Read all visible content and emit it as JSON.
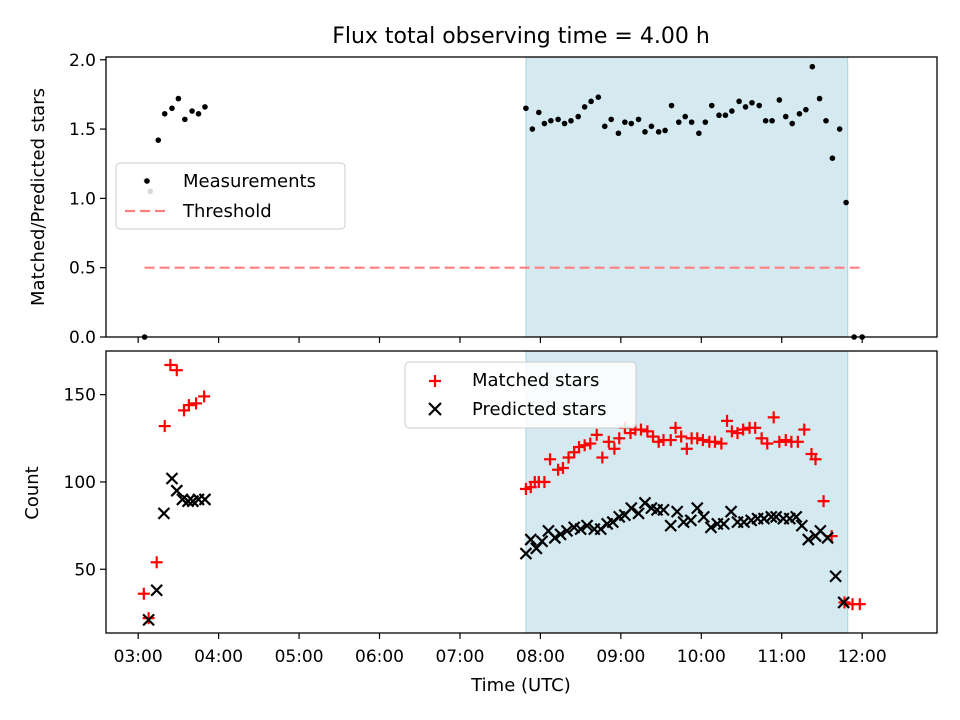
{
  "figure": {
    "title": "Flux total observing time = 4.00 h"
  },
  "chart_data": [
    {
      "type": "scatter",
      "ylabel": "Matched/Predicted stars",
      "xlabel": "",
      "x_axis": "time UTC (hours)",
      "xlim": [
        2.6,
        12.93
      ],
      "ylim": [
        0.0,
        2.02
      ],
      "yticks": [
        0.0,
        0.5,
        1.0,
        1.5,
        2.0
      ],
      "ytick_labels": [
        "0.0",
        "0.5",
        "1.0",
        "1.5",
        "2.0"
      ],
      "legend_position": "center-left",
      "legend": [
        "Measurements",
        "Threshold"
      ],
      "shaded_interval": {
        "x0": 7.82,
        "x1": 11.82,
        "color": "#d4e9f0"
      },
      "threshold": {
        "name": "Threshold",
        "y": 0.5,
        "x0": 3.08,
        "x1": 12.0,
        "color": "#ff7f7f"
      },
      "series": [
        {
          "name": "Measurements",
          "marker": "dot",
          "color": "#000000",
          "points": [
            [
              3.08,
              0.0
            ],
            [
              3.1,
              1.13
            ],
            [
              3.15,
              1.05
            ],
            [
              3.25,
              1.42
            ],
            [
              3.33,
              1.61
            ],
            [
              3.42,
              1.65
            ],
            [
              3.5,
              1.72
            ],
            [
              3.58,
              1.57
            ],
            [
              3.67,
              1.63
            ],
            [
              3.75,
              1.61
            ],
            [
              3.83,
              1.66
            ],
            [
              7.82,
              1.65
            ],
            [
              7.9,
              1.5
            ],
            [
              7.98,
              1.62
            ],
            [
              8.05,
              1.54
            ],
            [
              8.13,
              1.56
            ],
            [
              8.22,
              1.57
            ],
            [
              8.3,
              1.54
            ],
            [
              8.38,
              1.56
            ],
            [
              8.47,
              1.59
            ],
            [
              8.55,
              1.66
            ],
            [
              8.63,
              1.7
            ],
            [
              8.72,
              1.73
            ],
            [
              8.8,
              1.52
            ],
            [
              8.88,
              1.57
            ],
            [
              8.97,
              1.47
            ],
            [
              9.05,
              1.55
            ],
            [
              9.13,
              1.54
            ],
            [
              9.22,
              1.57
            ],
            [
              9.3,
              1.48
            ],
            [
              9.38,
              1.52
            ],
            [
              9.47,
              1.48
            ],
            [
              9.55,
              1.49
            ],
            [
              9.63,
              1.67
            ],
            [
              9.72,
              1.55
            ],
            [
              9.8,
              1.59
            ],
            [
              9.88,
              1.55
            ],
            [
              9.97,
              1.47
            ],
            [
              10.05,
              1.55
            ],
            [
              10.13,
              1.67
            ],
            [
              10.22,
              1.6
            ],
            [
              10.3,
              1.6
            ],
            [
              10.38,
              1.63
            ],
            [
              10.47,
              1.7
            ],
            [
              10.55,
              1.66
            ],
            [
              10.63,
              1.69
            ],
            [
              10.72,
              1.67
            ],
            [
              10.8,
              1.56
            ],
            [
              10.88,
              1.56
            ],
            [
              10.97,
              1.71
            ],
            [
              11.05,
              1.59
            ],
            [
              11.13,
              1.54
            ],
            [
              11.22,
              1.61
            ],
            [
              11.3,
              1.64
            ],
            [
              11.38,
              1.95
            ],
            [
              11.47,
              1.72
            ],
            [
              11.55,
              1.56
            ],
            [
              11.63,
              1.29
            ],
            [
              11.72,
              1.5
            ],
            [
              11.8,
              0.97
            ],
            [
              11.9,
              0.0
            ],
            [
              12.0,
              0.0
            ]
          ]
        }
      ]
    },
    {
      "type": "scatter",
      "ylabel": "Count",
      "xlabel": "Time (UTC)",
      "x_axis": "time UTC (hours)",
      "xlim": [
        2.6,
        12.93
      ],
      "ylim": [
        13.5,
        175
      ],
      "yticks": [
        50,
        100,
        150
      ],
      "ytick_labels": [
        "50",
        "100",
        "150"
      ],
      "xticks": [
        3,
        4,
        5,
        6,
        7,
        8,
        9,
        10,
        11,
        12
      ],
      "xtick_labels": [
        "03:00",
        "04:00",
        "05:00",
        "06:00",
        "07:00",
        "08:00",
        "09:00",
        "10:00",
        "11:00",
        "12:00"
      ],
      "legend_position": "upper-center",
      "legend": [
        "Matched stars",
        "Predicted stars"
      ],
      "shaded_interval": {
        "x0": 7.82,
        "x1": 11.82,
        "color": "#d4e9f0"
      },
      "series": [
        {
          "name": "Matched stars",
          "marker": "plus",
          "color": "#ff0000",
          "points": [
            [
              3.07,
              36
            ],
            [
              3.13,
              22
            ],
            [
              3.23,
              54
            ],
            [
              3.33,
              132
            ],
            [
              3.4,
              167
            ],
            [
              3.48,
              164
            ],
            [
              3.57,
              141
            ],
            [
              3.63,
              144
            ],
            [
              3.72,
              145
            ],
            [
              3.82,
              149
            ],
            [
              7.82,
              96
            ],
            [
              7.88,
              97
            ],
            [
              7.93,
              100
            ],
            [
              7.98,
              100
            ],
            [
              8.05,
              100
            ],
            [
              8.12,
              113
            ],
            [
              8.22,
              107
            ],
            [
              8.28,
              108
            ],
            [
              8.35,
              114
            ],
            [
              8.42,
              117
            ],
            [
              8.48,
              120
            ],
            [
              8.55,
              121
            ],
            [
              8.62,
              122
            ],
            [
              8.7,
              127
            ],
            [
              8.77,
              114
            ],
            [
              8.85,
              123
            ],
            [
              8.92,
              119
            ],
            [
              8.98,
              125
            ],
            [
              9.05,
              131
            ],
            [
              9.12,
              128
            ],
            [
              9.18,
              130
            ],
            [
              9.25,
              130
            ],
            [
              9.33,
              129
            ],
            [
              9.4,
              126
            ],
            [
              9.47,
              123
            ],
            [
              9.53,
              124
            ],
            [
              9.62,
              124
            ],
            [
              9.68,
              131
            ],
            [
              9.75,
              126
            ],
            [
              9.82,
              119
            ],
            [
              9.88,
              125
            ],
            [
              9.95,
              125
            ],
            [
              10.02,
              124
            ],
            [
              10.1,
              123
            ],
            [
              10.17,
              123
            ],
            [
              10.25,
              122
            ],
            [
              10.32,
              135
            ],
            [
              10.38,
              129
            ],
            [
              10.45,
              128
            ],
            [
              10.52,
              130
            ],
            [
              10.6,
              131
            ],
            [
              10.67,
              131
            ],
            [
              10.75,
              125
            ],
            [
              10.82,
              122
            ],
            [
              10.9,
              137
            ],
            [
              10.97,
              123
            ],
            [
              11.05,
              124
            ],
            [
              11.12,
              123
            ],
            [
              11.2,
              123
            ],
            [
              11.28,
              130
            ],
            [
              11.37,
              116
            ],
            [
              11.42,
              113
            ],
            [
              11.52,
              89
            ],
            [
              11.62,
              69
            ],
            [
              11.78,
              31
            ],
            [
              11.88,
              30
            ],
            [
              11.97,
              30
            ]
          ]
        },
        {
          "name": "Predicted stars",
          "marker": "x",
          "color": "#000000",
          "points": [
            [
              3.13,
              21
            ],
            [
              3.23,
              38
            ],
            [
              3.32,
              82
            ],
            [
              3.42,
              102
            ],
            [
              3.48,
              95
            ],
            [
              3.55,
              90
            ],
            [
              3.62,
              89
            ],
            [
              3.68,
              89
            ],
            [
              3.75,
              90
            ],
            [
              3.83,
              90
            ],
            [
              7.82,
              59
            ],
            [
              7.88,
              67
            ],
            [
              7.95,
              62
            ],
            [
              8.02,
              66
            ],
            [
              8.1,
              72
            ],
            [
              8.18,
              68
            ],
            [
              8.25,
              70
            ],
            [
              8.33,
              72
            ],
            [
              8.42,
              74
            ],
            [
              8.5,
              73
            ],
            [
              8.58,
              75
            ],
            [
              8.67,
              73
            ],
            [
              8.75,
              73
            ],
            [
              8.83,
              76
            ],
            [
              8.9,
              77
            ],
            [
              8.98,
              80
            ],
            [
              9.05,
              81
            ],
            [
              9.13,
              85
            ],
            [
              9.22,
              82
            ],
            [
              9.3,
              88
            ],
            [
              9.38,
              85
            ],
            [
              9.45,
              84
            ],
            [
              9.53,
              84
            ],
            [
              9.62,
              75
            ],
            [
              9.7,
              83
            ],
            [
              9.78,
              77
            ],
            [
              9.87,
              78
            ],
            [
              9.95,
              85
            ],
            [
              10.03,
              80
            ],
            [
              10.12,
              74
            ],
            [
              10.2,
              76
            ],
            [
              10.28,
              76
            ],
            [
              10.37,
              83
            ],
            [
              10.45,
              77
            ],
            [
              10.53,
              77
            ],
            [
              10.62,
              78
            ],
            [
              10.7,
              79
            ],
            [
              10.78,
              79
            ],
            [
              10.87,
              80
            ],
            [
              10.93,
              80
            ],
            [
              11.02,
              79
            ],
            [
              11.1,
              79
            ],
            [
              11.18,
              80
            ],
            [
              11.25,
              75
            ],
            [
              11.33,
              67
            ],
            [
              11.42,
              69
            ],
            [
              11.48,
              72
            ],
            [
              11.57,
              68
            ],
            [
              11.67,
              46
            ],
            [
              11.77,
              31
            ]
          ]
        }
      ]
    }
  ]
}
